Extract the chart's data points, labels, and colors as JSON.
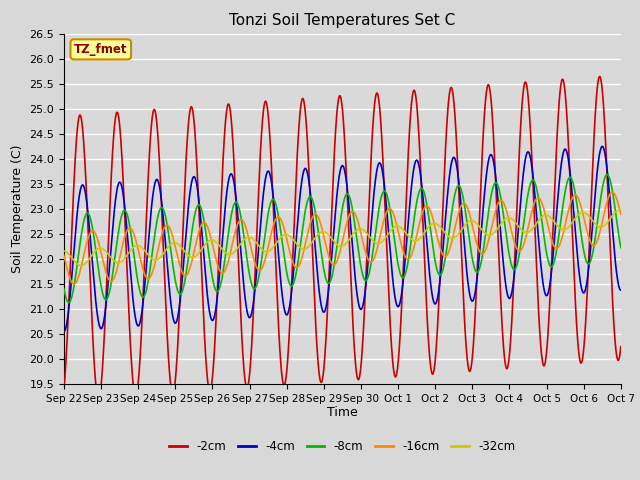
{
  "title": "Tonzi Soil Temperatures Set C",
  "xlabel": "Time",
  "ylabel": "Soil Temperature (C)",
  "ylim": [
    19.5,
    26.5
  ],
  "bg_color": "#d8d8d8",
  "plot_bg_color": "#d9d9d9",
  "grid_color": "white",
  "series_order": [
    "-2cm",
    "-4cm",
    "-8cm",
    "-16cm",
    "-32cm"
  ],
  "series": {
    "-2cm": {
      "color": "#cc0000",
      "lw": 1.2
    },
    "-4cm": {
      "color": "#0000cc",
      "lw": 1.2
    },
    "-8cm": {
      "color": "#00bb00",
      "lw": 1.2
    },
    "-16cm": {
      "color": "#ff8800",
      "lw": 1.2
    },
    "-32cm": {
      "color": "#cccc00",
      "lw": 1.2
    }
  },
  "annotation_label": "TZ_fmet",
  "annotation_bg": "#ffff99",
  "annotation_border": "#cc8800",
  "n_days": 15,
  "base_mean": 22.0,
  "trend_per_day": 0.055,
  "series_params": {
    "-2cm": {
      "amp": 2.85,
      "phase": 0.18,
      "noise": 0.0
    },
    "-4cm": {
      "amp": 1.45,
      "phase": 0.25,
      "noise": 0.0
    },
    "-8cm": {
      "amp": 0.88,
      "phase": 0.38,
      "noise": 0.0
    },
    "-16cm": {
      "amp": 0.52,
      "phase": 0.52,
      "noise": 0.0
    },
    "-32cm": {
      "amp": 0.16,
      "phase": 0.72,
      "noise": 0.0
    }
  },
  "xtick_labels": [
    "Sep 22",
    "Sep 23",
    "Sep 24",
    "Sep 25",
    "Sep 26",
    "Sep 27",
    "Sep 28",
    "Sep 29",
    "Sep 30",
    "Oct 1",
    "Oct 2",
    "Oct 3",
    "Oct 4",
    "Oct 5",
    "Oct 6",
    "Oct 7"
  ],
  "figsize": [
    6.4,
    4.8
  ],
  "dpi": 100
}
